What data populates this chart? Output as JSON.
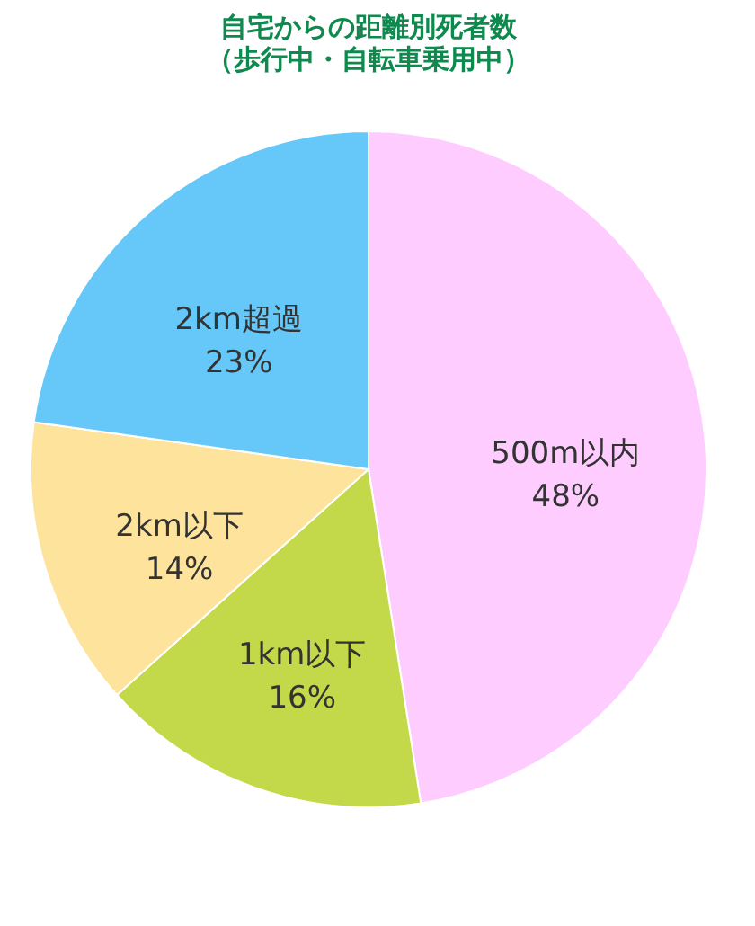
{
  "chart_data": {
    "type": "pie",
    "title": "自宅からの距離別死者数",
    "subtitle": "（歩行中・自転車乗用中）",
    "categories": [
      "500m以内",
      "1km以下",
      "2km以下",
      "2km超過"
    ],
    "values": [
      48,
      16,
      14,
      23
    ],
    "value_labels": [
      "48%",
      "16%",
      "14%",
      "23%"
    ],
    "colors": [
      "#ffccff",
      "#c4d94a",
      "#fde39b",
      "#66c8f8"
    ],
    "legend": false
  }
}
